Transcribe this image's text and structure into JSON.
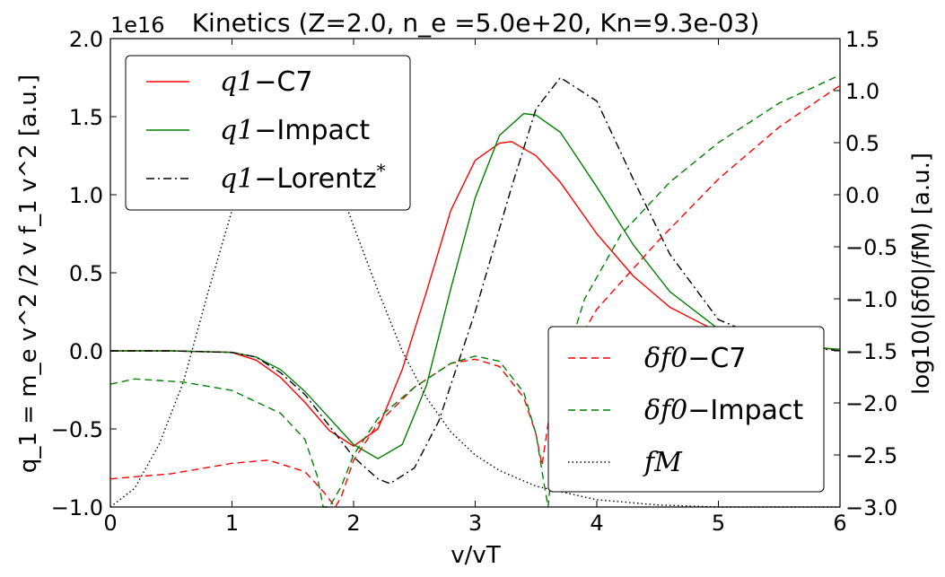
{
  "chart_data": {
    "type": "line",
    "title": "Kinetics (Z=2.0, n_e =5.0e+20, Kn=9.3e-03)",
    "xlabel": "v/vT",
    "ylabel_left": "q_1 = m_e v^2 /2 v f_1 v^2 [a.u.]",
    "ylabel_right": "log10(|δf0|/fM) [a.u.]",
    "offset_text": "1e16",
    "xlim": [
      0,
      6
    ],
    "ylim_left": [
      -1.0,
      2.0
    ],
    "ylim_right": [
      -3.0,
      1.5
    ],
    "xticks": [
      "0",
      "1",
      "2",
      "3",
      "4",
      "5",
      "6"
    ],
    "yticks_left": [
      "−1.0",
      "−0.5",
      "0.0",
      "0.5",
      "1.0",
      "1.5",
      "2.0"
    ],
    "yticks_right": [
      "−3.0",
      "−2.5",
      "−2.0",
      "−1.5",
      "−1.0",
      "−0.5",
      "0.0",
      "0.5",
      "1.0",
      "1.5"
    ],
    "legend_left": {
      "position": "top-left",
      "entries": [
        {
          "math": "q1",
          "label": "C7",
          "color": "#ff0000",
          "style": "solid"
        },
        {
          "math": "q1",
          "label": "Impact",
          "color": "#008000",
          "style": "solid"
        },
        {
          "math": "q1",
          "label": "Lorentz",
          "sup": "*",
          "color": "#000000",
          "style": "dashdot"
        }
      ]
    },
    "legend_right": {
      "position": "lower-right",
      "entries": [
        {
          "math": "δf0",
          "label": "C7",
          "color": "#ff0000",
          "style": "dashed"
        },
        {
          "math": "δf0",
          "label": "Impact",
          "color": "#008000",
          "style": "dashed"
        },
        {
          "math": "fM",
          "label": "",
          "color": "#000000",
          "style": "dotted"
        }
      ]
    },
    "series": [
      {
        "axis": "left",
        "color": "#ff0000",
        "style": "solid",
        "x": [
          0,
          0.5,
          1.0,
          1.2,
          1.4,
          1.6,
          1.8,
          2.0,
          2.2,
          2.4,
          2.6,
          2.8,
          3.0,
          3.2,
          3.3,
          3.5,
          3.7,
          4.0,
          4.3,
          4.6,
          5.0,
          5.5,
          6.0
        ],
        "y": [
          0,
          0,
          -0.01,
          -0.06,
          -0.17,
          -0.33,
          -0.51,
          -0.61,
          -0.5,
          -0.12,
          0.38,
          0.9,
          1.22,
          1.33,
          1.34,
          1.25,
          1.08,
          0.75,
          0.48,
          0.28,
          0.12,
          0.03,
          0.01
        ]
      },
      {
        "axis": "left",
        "color": "#008000",
        "style": "solid",
        "x": [
          0,
          0.5,
          1.0,
          1.2,
          1.4,
          1.6,
          1.8,
          2.0,
          2.2,
          2.4,
          2.6,
          2.8,
          3.0,
          3.2,
          3.4,
          3.5,
          3.7,
          4.0,
          4.3,
          4.6,
          5.0,
          5.5,
          6.0
        ],
        "y": [
          0,
          0,
          -0.01,
          -0.04,
          -0.12,
          -0.26,
          -0.43,
          -0.6,
          -0.69,
          -0.6,
          -0.22,
          0.4,
          0.98,
          1.38,
          1.52,
          1.51,
          1.4,
          1.05,
          0.68,
          0.38,
          0.14,
          0.04,
          0.01
        ]
      },
      {
        "axis": "left",
        "color": "#000000",
        "style": "dashdot",
        "x": [
          0,
          0.5,
          1.0,
          1.2,
          1.4,
          1.6,
          1.8,
          2.0,
          2.2,
          2.3,
          2.5,
          2.7,
          3.0,
          3.3,
          3.5,
          3.7,
          4.0,
          4.3,
          4.6,
          5.0,
          5.5,
          6.0
        ],
        "y": [
          0,
          0,
          -0.01,
          -0.04,
          -0.14,
          -0.28,
          -0.48,
          -0.68,
          -0.82,
          -0.85,
          -0.75,
          -0.45,
          0.25,
          1.05,
          1.55,
          1.75,
          1.6,
          1.1,
          0.62,
          0.2,
          0.04,
          0.0
        ]
      },
      {
        "axis": "right",
        "color": "#ff0000",
        "style": "dashed",
        "x": [
          0,
          0.5,
          1.0,
          1.3,
          1.6,
          1.75,
          1.85,
          1.9,
          2.0,
          2.2,
          2.5,
          2.8,
          3.0,
          3.2,
          3.4,
          3.5,
          3.55,
          3.6,
          3.7,
          4.0,
          4.5,
          5.0,
          5.5,
          6.0
        ],
        "y": [
          -2.73,
          -2.68,
          -2.58,
          -2.55,
          -2.66,
          -2.85,
          -3.0,
          -2.9,
          -2.55,
          -2.2,
          -1.85,
          -1.62,
          -1.58,
          -1.65,
          -1.95,
          -2.3,
          -2.6,
          -2.2,
          -1.7,
          -1.1,
          -0.45,
          0.15,
          0.65,
          1.05
        ]
      },
      {
        "axis": "right",
        "color": "#008000",
        "style": "dashed",
        "x": [
          0,
          0.2,
          0.6,
          1.0,
          1.4,
          1.6,
          1.7,
          1.75,
          1.8,
          1.9,
          2.0,
          2.2,
          2.5,
          2.8,
          3.0,
          3.2,
          3.4,
          3.5,
          3.57,
          3.6,
          3.7,
          3.9,
          4.2,
          4.6,
          5.0,
          5.5,
          6.0
        ],
        "y": [
          -1.82,
          -1.77,
          -1.8,
          -1.88,
          -2.1,
          -2.35,
          -2.7,
          -3.0,
          -3.0,
          -2.8,
          -2.5,
          -2.15,
          -1.85,
          -1.62,
          -1.55,
          -1.6,
          -1.9,
          -2.3,
          -2.8,
          -3.0,
          -1.75,
          -1.0,
          -0.38,
          0.12,
          0.5,
          0.88,
          1.15
        ]
      },
      {
        "axis": "right",
        "color": "#000000",
        "style": "dotted",
        "x": [
          0,
          0.2,
          0.4,
          0.6,
          0.8,
          1.0,
          1.2,
          1.4,
          1.6,
          1.8,
          2.0,
          2.2,
          2.4,
          2.6,
          2.8,
          3.0,
          3.2,
          3.5,
          4.0,
          4.5,
          5.0,
          6.0
        ],
        "y": [
          -3.0,
          -2.82,
          -2.4,
          -1.8,
          -0.95,
          -0.15,
          0.5,
          1.13,
          0.9,
          0.35,
          -0.3,
          -0.92,
          -1.5,
          -1.95,
          -2.28,
          -2.5,
          -2.65,
          -2.8,
          -2.93,
          -2.98,
          -3.0,
          -3.0
        ]
      }
    ]
  }
}
